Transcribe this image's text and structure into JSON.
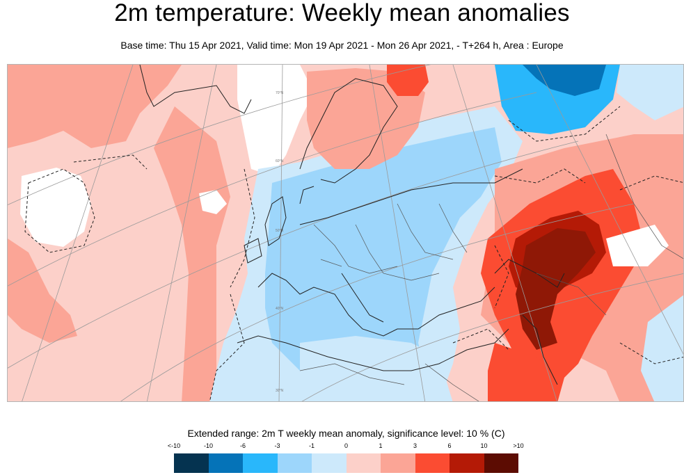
{
  "header": {
    "title": "2m temperature: Weekly mean anomalies",
    "subtitle": "Base time: Thu 15 Apr 2021, Valid time: Mon 19 Apr 2021 - Mon 26 Apr 2021, - T+264 h, Area : Europe"
  },
  "map": {
    "area": "Europe",
    "parallel_labels": [
      "70°N",
      "60°N",
      "50°N",
      "40°N",
      "30°N"
    ],
    "region_colors": {
      "scandinavia": "#fb9e90",
      "arctic_russia": "#0573b8",
      "central_europe": "#9dd6fb",
      "eastern_hotspot": "#8f1806",
      "middle_east": "#fb4c32",
      "atlantic": "#fcd0c9"
    }
  },
  "legend": {
    "title": "Extended range: 2m T weekly mean anomaly, significance level: 10 % (C)",
    "ticks": [
      "<-10",
      "-10",
      "-6",
      "-3",
      "-1",
      "0",
      "1",
      "3",
      "6",
      "10",
      ">10"
    ],
    "colors": [
      "#053350",
      "#0573b8",
      "#29b7fb",
      "#9dd6fb",
      "#cde9fb",
      "#fcd0c9",
      "#fba596",
      "#fb4c32",
      "#b41a06",
      "#5c0c02"
    ]
  }
}
